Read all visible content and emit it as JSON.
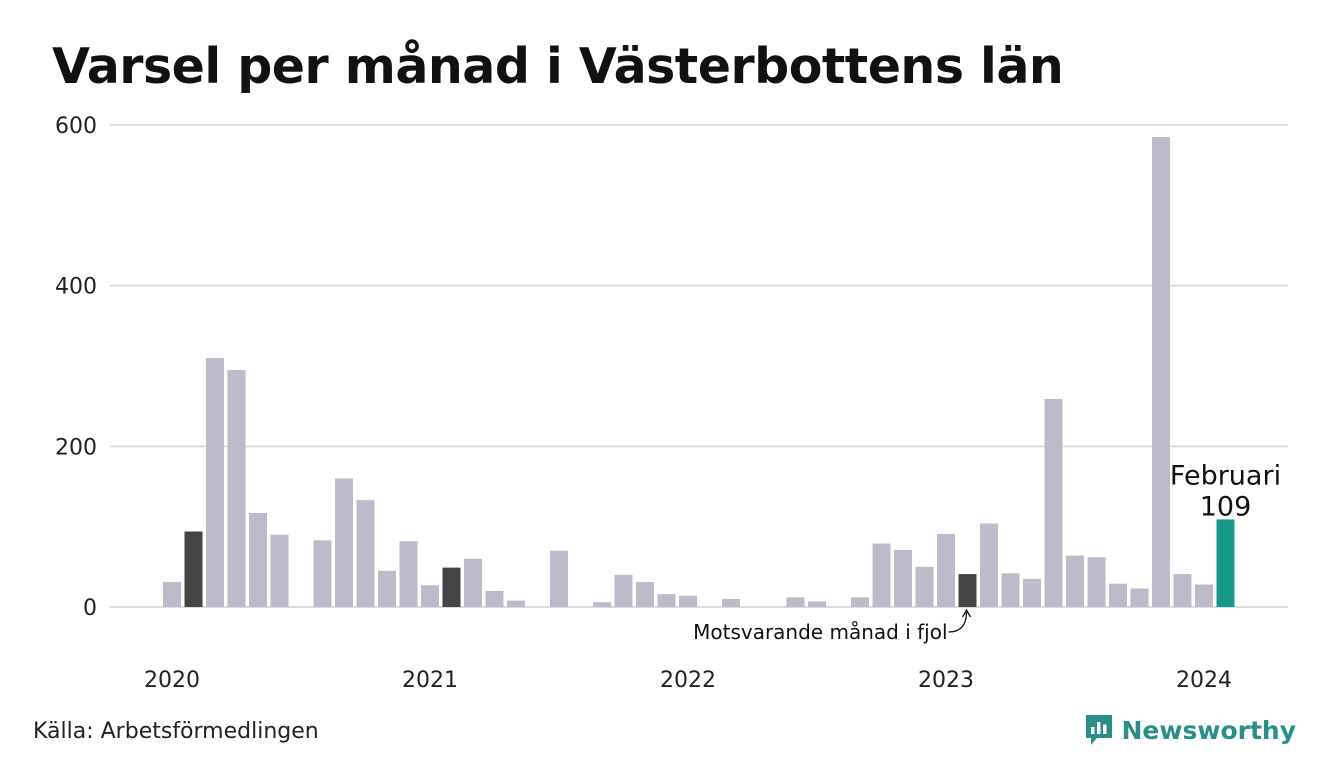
{
  "chart_data": {
    "type": "bar",
    "title": "Varsel per månad i Västerbottens län",
    "xlabel": "",
    "ylabel": "",
    "ylim": [
      0,
      600
    ],
    "yticks": [
      0,
      200,
      400,
      600
    ],
    "xticks": [
      "2020",
      "2021",
      "2022",
      "2023",
      "2024"
    ],
    "categories": [
      "2020-01",
      "2020-02",
      "2020-03",
      "2020-04",
      "2020-05",
      "2020-06",
      "2020-07",
      "2020-08",
      "2020-09",
      "2020-10",
      "2020-11",
      "2020-12",
      "2021-01",
      "2021-02",
      "2021-03",
      "2021-04",
      "2021-05",
      "2021-06",
      "2021-07",
      "2021-08",
      "2021-09",
      "2021-10",
      "2021-11",
      "2021-12",
      "2022-01",
      "2022-02",
      "2022-03",
      "2022-04",
      "2022-05",
      "2022-06",
      "2022-07",
      "2022-08",
      "2022-09",
      "2022-10",
      "2022-11",
      "2022-12",
      "2023-01",
      "2023-02",
      "2023-03",
      "2023-04",
      "2023-05",
      "2023-06",
      "2023-07",
      "2023-08",
      "2023-09",
      "2023-10",
      "2023-11",
      "2023-12",
      "2024-01",
      "2024-02"
    ],
    "values": [
      31,
      94,
      310,
      295,
      117,
      90,
      0,
      83,
      160,
      133,
      45,
      82,
      27,
      49,
      60,
      20,
      8,
      0,
      70,
      0,
      6,
      40,
      31,
      16,
      14,
      0,
      10,
      0,
      0,
      12,
      7,
      0,
      12,
      79,
      71,
      50,
      91,
      41,
      104,
      42,
      35,
      259,
      64,
      62,
      29,
      23,
      585,
      41,
      28,
      109
    ],
    "highlight": {
      "index": 49,
      "label": "Februari",
      "value_label": "109"
    },
    "previous_year_same_month": [
      1,
      13,
      37
    ],
    "annotation": "Motsvarande månad i fjol",
    "colors": {
      "default": "#bcbbc9",
      "previous_year": "#444444",
      "current": "#17998a",
      "grid": "#dcdce0"
    }
  },
  "footer": {
    "source": "Källa: Arbetsförmedlingen",
    "brand": "Newsworthy",
    "brand_icon": "newsworthy-logo-icon"
  }
}
